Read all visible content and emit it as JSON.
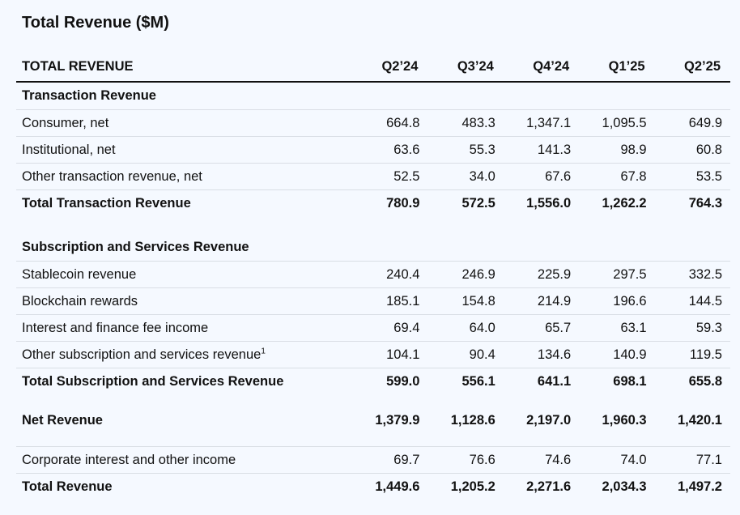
{
  "title": "Total Revenue ($M)",
  "header": {
    "label": "TOTAL REVENUE",
    "quarters": [
      "Q2’24",
      "Q3’24",
      "Q4’24",
      "Q1’25",
      "Q2’25"
    ]
  },
  "transaction": {
    "section_label": "Transaction Revenue",
    "rows": [
      {
        "label": "Consumer, net",
        "values": [
          "664.8",
          "483.3",
          "1,347.1",
          "1,095.5",
          "649.9"
        ]
      },
      {
        "label": "Institutional, net",
        "values": [
          "63.6",
          "55.3",
          "141.3",
          "98.9",
          "60.8"
        ]
      },
      {
        "label": "Other transaction revenue, net",
        "values": [
          "52.5",
          "34.0",
          "67.6",
          "67.8",
          "53.5"
        ]
      }
    ],
    "total": {
      "label": "Total Transaction Revenue",
      "values": [
        "780.9",
        "572.5",
        "1,556.0",
        "1,262.2",
        "764.3"
      ]
    }
  },
  "subscription": {
    "section_label": "Subscription and Services Revenue",
    "rows": [
      {
        "label": "Stablecoin revenue",
        "values": [
          "240.4",
          "246.9",
          "225.9",
          "297.5",
          "332.5"
        ]
      },
      {
        "label": "Blockchain rewards",
        "values": [
          "185.1",
          "154.8",
          "214.9",
          "196.6",
          "144.5"
        ]
      },
      {
        "label": "Interest and finance fee income",
        "values": [
          "69.4",
          "64.0",
          "65.7",
          "63.1",
          "59.3"
        ]
      },
      {
        "label": "Other subscription and services revenue",
        "footnote": "1",
        "values": [
          "104.1",
          "90.4",
          "134.6",
          "140.9",
          "119.5"
        ]
      }
    ],
    "total": {
      "label": "Total Subscription and Services Revenue",
      "values": [
        "599.0",
        "556.1",
        "641.1",
        "698.1",
        "655.8"
      ]
    }
  },
  "net_revenue": {
    "label": "Net Revenue",
    "values": [
      "1,379.9",
      "1,128.6",
      "2,197.0",
      "1,960.3",
      "1,420.1"
    ]
  },
  "corporate_interest": {
    "label": "Corporate interest and other income",
    "values": [
      "69.7",
      "76.6",
      "74.6",
      "74.0",
      "77.1"
    ]
  },
  "total_revenue": {
    "label": "Total Revenue",
    "values": [
      "1,449.6",
      "1,205.2",
      "2,271.6",
      "2,034.3",
      "1,497.2"
    ]
  }
}
